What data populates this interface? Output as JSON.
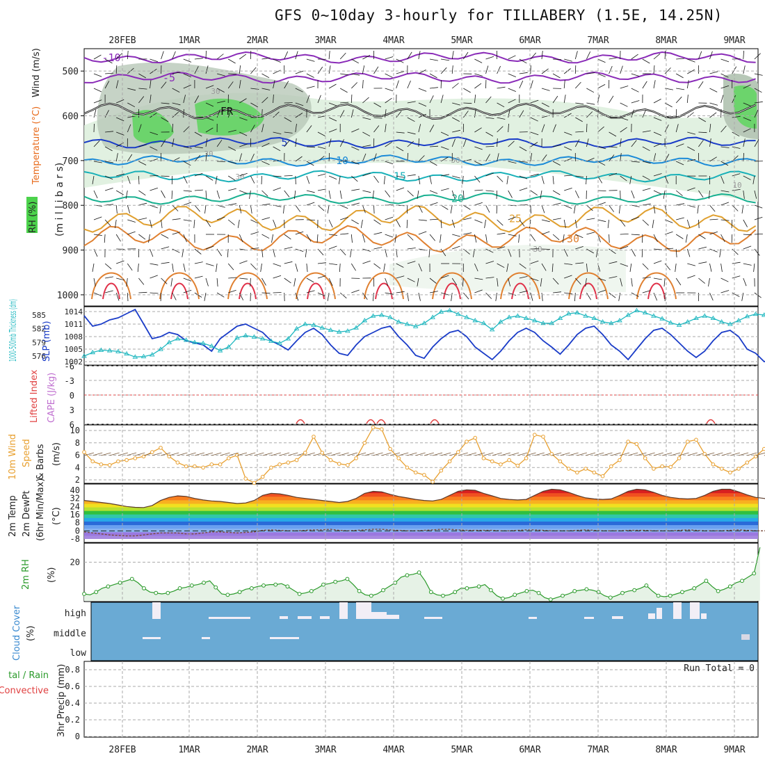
{
  "title": "GFS 0~10day 3-hourly for TILLABERY (1.5E, 14.25N)",
  "dates": [
    "28FEB",
    "1MAR",
    "2MAR",
    "3MAR",
    "4MAR",
    "5MAR",
    "6MAR",
    "7MAR",
    "8MAR",
    "9MAR"
  ],
  "colors": {
    "slp": "#1a3cc8",
    "thk": "#20b8c0",
    "wind10": "#e8a030",
    "rh2m": "#2a9a2a",
    "cloud": "#6aaad4",
    "grid": "#aaaaaa"
  },
  "panels": {
    "upper": {
      "lbl_wind": "Wind (m/s)",
      "lbl_temp": "Temperature (°C)",
      "lbl_rh": "RH (%)",
      "lbl_mb": "(m i l l i b a r s)"
    },
    "slp": {
      "lbl_thk": "1000-500mb Thickness (dm)",
      "lbl_slp": "SLP (mb)"
    },
    "cape": {
      "lbl_li": "Lifted Index",
      "lbl_cape": "CAPE (J/kg)"
    },
    "wind10": {
      "lbl1": "10m Wind",
      "lbl2": "Speed",
      "lbl3": "& Barbs",
      "lbl4": "(m/s)"
    },
    "temp2m": {
      "lbl1": "2m Temp",
      "lbl2": "2m DewPt",
      "lbl3": "(6hr Min/Max)",
      "lbl4": "(°C)"
    },
    "rh2m": {
      "lbl1": "2m RH",
      "lbl2": "(%)"
    },
    "cloud": {
      "lbl1": "Cloud Cover",
      "lbl2": "(%)",
      "levels": [
        "high",
        "middle",
        "low"
      ]
    },
    "precip": {
      "lbl1": "tal / Rain",
      "lbl2": "Convective",
      "lbl3": "3hr Precip (mm)",
      "run_total": "Run Total = 0"
    }
  },
  "chart_data": [
    {
      "type": "contour",
      "name": "upper-air",
      "y_ticks": [
        500,
        600,
        700,
        800,
        900,
        1000
      ],
      "temperature_contours": [
        {
          "label": "-10",
          "level_mb": 470
        },
        {
          "label": "-5",
          "level_mb": 515
        },
        {
          "label": "FR",
          "level_mb": 590
        },
        {
          "label": "5",
          "level_mb": 660
        },
        {
          "label": "10",
          "level_mb": 700
        },
        {
          "label": "15",
          "level_mb": 735
        },
        {
          "label": "20",
          "level_mb": 785
        },
        {
          "label": "25",
          "level_mb": 830
        },
        {
          "label": "30",
          "level_mb": 875
        }
      ],
      "rh_labels": [
        "30",
        "30",
        "30",
        "30",
        "30",
        "10"
      ]
    },
    {
      "type": "line",
      "name": "slp-thickness",
      "y_ticks_slp": [
        1002,
        1005,
        1008,
        1011,
        1014
      ],
      "y_ticks_thk": [
        576,
        579,
        582,
        585
      ],
      "slp": [
        1013,
        1010.5,
        1011,
        1012,
        1012.5,
        1013.5,
        1014.5,
        1011,
        1007.5,
        1008,
        1009,
        1008.5,
        1007,
        1006.5,
        1006,
        1004.5,
        1007.5,
        1009,
        1010.5,
        1011,
        1010,
        1009,
        1007,
        1006,
        1004.8,
        1007,
        1009,
        1010,
        1008.5,
        1006,
        1004,
        1003.5,
        1006,
        1008,
        1009,
        1010,
        1010.5,
        1008,
        1006,
        1003.5,
        1002.8,
        1005.5,
        1007.5,
        1009,
        1009.5,
        1008,
        1005.5,
        1004,
        1002.5,
        1004.5,
        1007,
        1009,
        1010,
        1009,
        1007,
        1005.5,
        1003.8,
        1006,
        1008.5,
        1010,
        1010.5,
        1008.5,
        1006,
        1004.5,
        1002.5,
        1005,
        1007.5,
        1009.5,
        1010,
        1008.5,
        1006.5,
        1004.5,
        1003,
        1004.5,
        1007,
        1009,
        1009.5,
        1008,
        1005,
        1004,
        1002,
        1002.5,
        1003.5,
        1004,
        1004,
        1005
      ],
      "thickness": [
        576,
        576.8,
        577.3,
        577.2,
        577,
        576.5,
        575.8,
        575.9,
        576.3,
        577.5,
        579,
        579.8,
        579.5,
        579,
        578.8,
        578.2,
        577.2,
        578,
        580,
        580.5,
        580.2,
        579.8,
        579.3,
        578.8,
        579.8,
        582,
        583,
        582.8,
        582.2,
        581.7,
        581.3,
        581.5,
        582.2,
        583.8,
        584.8,
        585,
        584.5,
        583.5,
        583,
        582.5,
        583.2,
        584.5,
        585.7,
        586,
        585.2,
        584.5,
        583.8,
        583.2,
        581.8,
        583.5,
        584.5,
        584.8,
        584.3,
        583.8,
        583.2,
        583.2,
        584.3,
        585.3,
        585.5,
        584.8,
        584.3,
        583.5,
        583.2,
        583.8,
        585,
        586,
        585.5,
        584.8,
        584.2,
        583.3,
        582.8,
        583.5,
        584.3,
        584.8,
        584.3,
        583.5,
        583,
        583.8,
        584.7,
        585.2,
        585,
        584.3,
        583.7,
        583.2,
        583.2,
        583.3
      ]
    },
    {
      "type": "line",
      "name": "cape-lifted-index",
      "y_ticks": [
        "-6",
        "-3",
        "0",
        "3",
        "6"
      ],
      "lifted_index_zero": 0
    },
    {
      "type": "line",
      "name": "10m-wind",
      "y_ticks": [
        2,
        4,
        6,
        8,
        10
      ],
      "speed": [
        6.5,
        5,
        4.5,
        4.4,
        5,
        5.2,
        5.5,
        5.8,
        6.5,
        7.2,
        5.8,
        4.8,
        4.2,
        4.2,
        4,
        4.5,
        4.5,
        5.5,
        6,
        2.2,
        1.5,
        2.5,
        4,
        4.5,
        4.8,
        5.2,
        6.4,
        9,
        6.4,
        5.2,
        4.6,
        4.4,
        5.5,
        8,
        10.5,
        10.2,
        7,
        5.5,
        4,
        3.2,
        2.8,
        1.7,
        3.5,
        5,
        6.5,
        8.2,
        8.8,
        5.5,
        5,
        4.5,
        5.2,
        4.3,
        5.5,
        9.3,
        9,
        6.2,
        5,
        3.8,
        3.2,
        3.8,
        3.2,
        2.6,
        4.2,
        5.2,
        8.2,
        7.8,
        5.5,
        3.8,
        4.2,
        4.1,
        5.5,
        8.2,
        8.5,
        6.2,
        4.5,
        3.8,
        3.2,
        3.8,
        4.8,
        5.8,
        7,
        9,
        9.7,
        10,
        7.5,
        5.5,
        5,
        4.5,
        3.2,
        2.8,
        3
      ]
    },
    {
      "type": "area",
      "name": "2m-temperature",
      "y_ticks": [
        "-8",
        "0",
        "8",
        "16",
        "24",
        "32",
        "40"
      ],
      "temp": [
        30,
        29,
        28,
        27,
        25.5,
        24,
        23.2,
        23,
        25,
        30,
        33,
        34.5,
        34,
        32,
        30.5,
        29.5,
        29,
        28,
        27,
        27.5,
        30,
        35,
        37,
        36.5,
        35,
        33,
        32,
        31,
        30,
        29,
        28,
        29,
        32,
        37,
        39,
        38.5,
        36,
        34,
        32.5,
        31,
        30,
        29.5,
        31,
        35,
        39,
        40.5,
        40,
        37,
        34.5,
        32,
        31,
        30.5,
        31,
        35,
        39,
        41,
        40.5,
        38,
        35,
        32.5,
        31.5,
        31,
        31.5,
        35,
        39,
        41,
        40.5,
        38,
        35,
        33,
        32,
        31.5,
        32,
        35,
        39,
        41,
        41,
        38.5,
        35.5,
        33,
        32,
        31,
        32,
        35,
        39,
        40,
        39.5,
        37,
        34,
        32,
        30,
        29.5,
        29,
        28.5
      ],
      "dewpoint": [
        -1,
        -2,
        -3,
        -4,
        -4.5,
        -5,
        -5,
        -4,
        -3,
        -2,
        -2,
        -2,
        -3,
        -3,
        -2,
        -1,
        -1,
        -1.5,
        -2,
        -1.5,
        -1,
        0.5,
        1,
        0.5,
        0,
        0,
        0.5,
        1,
        1,
        1.5,
        0.5,
        0,
        0.5,
        1,
        1.5,
        1.5,
        1,
        0.5,
        0,
        0,
        0.5,
        1,
        1.5,
        1.5,
        1,
        0.5,
        0.5,
        0.5,
        0.5,
        0,
        0,
        0.5,
        1,
        1,
        0.5,
        0,
        0,
        0,
        0.5,
        1,
        0.5,
        0,
        0,
        0,
        0.5,
        0.5,
        0.5,
        0,
        0,
        0,
        0.5,
        1,
        0.5,
        0,
        0,
        0,
        0.5,
        1,
        0.5,
        0,
        0,
        0.5,
        1,
        1.5,
        1,
        0.5,
        1.5,
        3
      ]
    },
    {
      "type": "area",
      "name": "2m-rh",
      "y_ticks": [
        20
      ],
      "rh": [
        3,
        2.5,
        4,
        6,
        7,
        8,
        9,
        10,
        11,
        9,
        6,
        4,
        3.5,
        3,
        3.5,
        4.5,
        6,
        6.5,
        7.5,
        8,
        9,
        10,
        6.5,
        3,
        2.5,
        3,
        4,
        5.5,
        6,
        7,
        7.5,
        8,
        8,
        8.5,
        7,
        5,
        3,
        3.5,
        4.5,
        6,
        8,
        8.5,
        9.5,
        10,
        11,
        8,
        4.5,
        2.5,
        2,
        3,
        5,
        7,
        9,
        12,
        13,
        13.5,
        14.5,
        10,
        4,
        2.5,
        2,
        2.5,
        4,
        6,
        6,
        6.5,
        7,
        8,
        5,
        2,
        0.5,
        1,
        2.5,
        3.5,
        4.5,
        5,
        3.5,
        1,
        0,
        1,
        2,
        3,
        4.5,
        5,
        5.5,
        5,
        4,
        2,
        1,
        2,
        3.5,
        4.5,
        5,
        6,
        7.5,
        4.5,
        2,
        1.5,
        2,
        3,
        4,
        5,
        6,
        8,
        10,
        7,
        4.5,
        5.5,
        7,
        9,
        10,
        12,
        14,
        28
      ]
    },
    {
      "type": "heatmap",
      "name": "cloud-cover",
      "levels": [
        "high",
        "middle",
        "low"
      ]
    },
    {
      "type": "bar",
      "name": "3hr-precip",
      "y_ticks": [
        "0",
        "0.2",
        "0.4",
        "0.6",
        "0.8"
      ],
      "values": []
    }
  ]
}
